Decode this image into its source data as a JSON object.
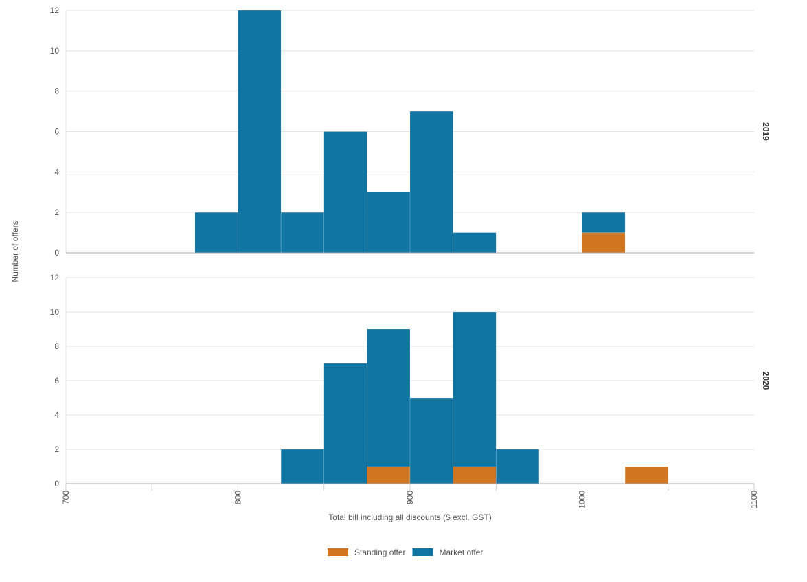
{
  "chart_data": {
    "type": "bar",
    "stacked": true,
    "xlabel": "Total bill including all discounts ($ excl. GST)",
    "ylabel": "Number of offers",
    "xlim": [
      700,
      1100
    ],
    "x_ticks": [
      "700",
      "800",
      "900",
      "1000",
      "1100"
    ],
    "bin_width": 25,
    "ylim": [
      0,
      12
    ],
    "y_ticks": [
      "0",
      "2",
      "4",
      "6",
      "8",
      "10",
      "12"
    ],
    "grid": true,
    "legend_position": "bottom",
    "legend": [
      {
        "name": "Standing offer",
        "color": "#d07620"
      },
      {
        "name": "Market offer",
        "color": "#1175a3"
      }
    ],
    "panels": [
      {
        "label": "2019",
        "bins": [
          {
            "x0": 775,
            "x1": 800,
            "standing": 0,
            "market": 2
          },
          {
            "x0": 800,
            "x1": 825,
            "standing": 0,
            "market": 12
          },
          {
            "x0": 825,
            "x1": 850,
            "standing": 0,
            "market": 2
          },
          {
            "x0": 850,
            "x1": 875,
            "standing": 0,
            "market": 6
          },
          {
            "x0": 875,
            "x1": 900,
            "standing": 0,
            "market": 3
          },
          {
            "x0": 900,
            "x1": 925,
            "standing": 0,
            "market": 7
          },
          {
            "x0": 925,
            "x1": 950,
            "standing": 0,
            "market": 1
          },
          {
            "x0": 1000,
            "x1": 1025,
            "standing": 1,
            "market": 1
          }
        ]
      },
      {
        "label": "2020",
        "bins": [
          {
            "x0": 825,
            "x1": 850,
            "standing": 0,
            "market": 2
          },
          {
            "x0": 850,
            "x1": 875,
            "standing": 0,
            "market": 7
          },
          {
            "x0": 875,
            "x1": 900,
            "standing": 1,
            "market": 8
          },
          {
            "x0": 900,
            "x1": 925,
            "standing": 0,
            "market": 5
          },
          {
            "x0": 925,
            "x1": 950,
            "standing": 1,
            "market": 9
          },
          {
            "x0": 950,
            "x1": 975,
            "standing": 0,
            "market": 2
          },
          {
            "x0": 1025,
            "x1": 1050,
            "standing": 1,
            "market": 0
          }
        ]
      }
    ]
  }
}
